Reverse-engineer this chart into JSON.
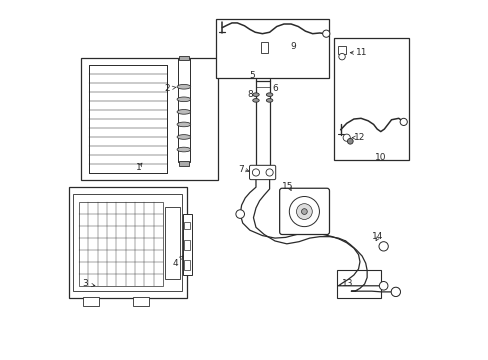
{
  "background_color": "#ffffff",
  "line_color": "#2a2a2a",
  "figsize": [
    4.89,
    3.6
  ],
  "dpi": 100
}
